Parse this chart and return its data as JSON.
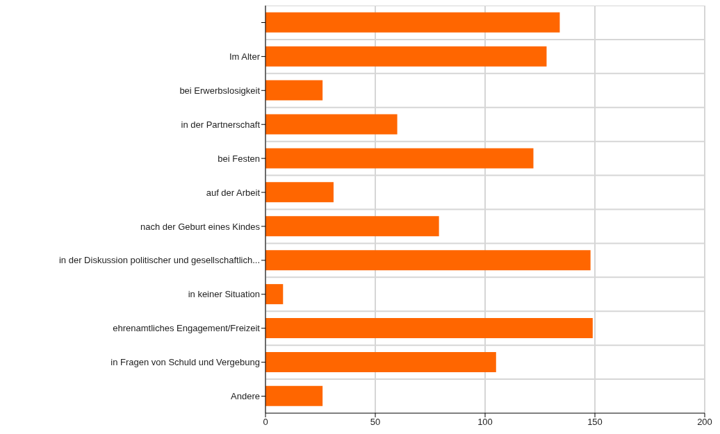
{
  "chart_data": {
    "type": "bar",
    "orientation": "horizontal",
    "categories": [
      null,
      "Im Alter",
      "bei Erwerbslosigkeit",
      "in der Partnerschaft",
      "bei Festen",
      "auf der Arbeit",
      "nach der Geburt eines Kindes",
      "in der Diskussion politischer und gesellschaftlich...",
      "in keiner Situation",
      "ehrenamtliches Engagement/Freizeit",
      "in Fragen von Schuld und Vergebung",
      "Andere"
    ],
    "values": [
      134,
      128,
      26,
      60,
      122,
      31,
      79,
      148,
      8,
      149,
      105,
      26
    ],
    "color": "#ff6600",
    "xlim": [
      0,
      200
    ],
    "xticks": [
      0,
      50,
      100,
      150,
      200
    ],
    "grid": true
  }
}
